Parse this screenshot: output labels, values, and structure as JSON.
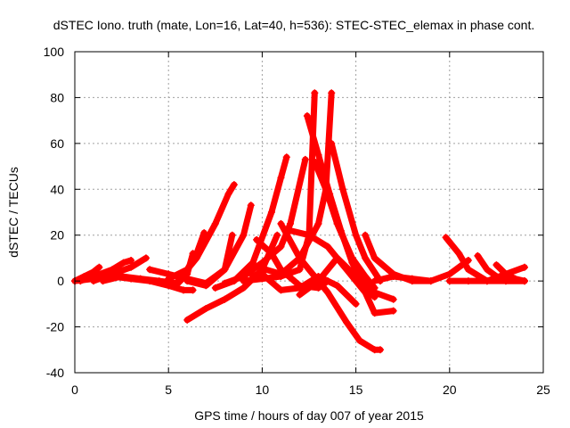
{
  "chart_data": {
    "type": "scatter",
    "title": "dSTEC Iono. truth (mate, Lon=16, Lat=40, h=536): STEC-STEC_elemax in phase cont.",
    "xlabel": "GPS time / hours of day 007 of year 2015",
    "ylabel": "dSTEC  / TECUs",
    "xlim": [
      0,
      25
    ],
    "ylim": [
      -40,
      100
    ],
    "xticks": [
      0,
      5,
      10,
      15,
      20,
      25
    ],
    "yticks": [
      -40,
      -20,
      0,
      20,
      40,
      60,
      80,
      100
    ],
    "grid": true,
    "marker": "+",
    "color": "#ff0000",
    "series": [
      {
        "x": [
          0,
          0.5,
          1.0,
          1.3
        ],
        "y": [
          0,
          2,
          4,
          6
        ]
      },
      {
        "x": [
          0,
          1.0,
          2.0,
          3.0,
          4.0,
          5.0,
          5.8,
          6.3
        ],
        "y": [
          0,
          1,
          2,
          1,
          0,
          -2,
          -4,
          -4
        ]
      },
      {
        "x": [
          0.3,
          1.0,
          2.0,
          2.6,
          3.0
        ],
        "y": [
          0,
          2,
          5,
          8,
          9
        ]
      },
      {
        "x": [
          1.0,
          2.0,
          3.0,
          3.8
        ],
        "y": [
          0,
          3,
          6,
          10
        ]
      },
      {
        "x": [
          1.5,
          2.5,
          3.5,
          4.5,
          5.5,
          6.0,
          6.3
        ],
        "y": [
          0,
          2,
          1,
          0,
          -1,
          3,
          12
        ]
      },
      {
        "x": [
          4.0,
          5.0,
          6.0,
          7.0,
          8.0,
          8.4
        ],
        "y": [
          5,
          3,
          1,
          -1,
          5,
          20
        ]
      },
      {
        "x": [
          5.0,
          6.0,
          6.5,
          6.9
        ],
        "y": [
          1,
          5,
          12,
          21
        ]
      },
      {
        "x": [
          6.0,
          7.0,
          8.0,
          9.0,
          9.4
        ],
        "y": [
          0,
          -2,
          5,
          20,
          33
        ]
      },
      {
        "x": [
          5.5,
          6.5,
          7.5,
          8.2,
          8.5
        ],
        "y": [
          0,
          10,
          25,
          38,
          42
        ]
      },
      {
        "x": [
          6.0,
          7.0,
          8.0,
          9.0,
          10.0,
          10.8
        ],
        "y": [
          -17,
          -12,
          -8,
          -3,
          5,
          20
        ]
      },
      {
        "x": [
          7.5,
          8.5,
          9.5,
          10.5,
          11.0,
          11.3
        ],
        "y": [
          -3,
          0,
          8,
          30,
          45,
          54
        ]
      },
      {
        "x": [
          8.0,
          9.0,
          10.0,
          11.0,
          11.5,
          12.3
        ],
        "y": [
          -1,
          2,
          8,
          15,
          25,
          53
        ]
      },
      {
        "x": [
          9.0,
          10.0,
          11.0,
          12.0,
          12.5,
          12.8
        ],
        "y": [
          0,
          1,
          2,
          5,
          20,
          82
        ]
      },
      {
        "x": [
          9.5,
          10.2,
          11.0,
          12.0,
          13.0,
          13.4,
          13.7
        ],
        "y": [
          2,
          5,
          3,
          10,
          25,
          40,
          82
        ]
      },
      {
        "x": [
          9.7,
          10.5,
          11.0,
          12.0,
          13.0,
          13.5
        ],
        "y": [
          18,
          12,
          5,
          -2,
          -3,
          0
        ]
      },
      {
        "x": [
          10.0,
          11.0,
          12.0,
          13.0,
          14.0,
          15.0
        ],
        "y": [
          3,
          -4,
          -3,
          2,
          -2,
          -10
        ]
      },
      {
        "x": [
          11.0,
          12.0,
          12.5,
          13.5,
          14.5,
          15.2,
          16.0,
          16.3
        ],
        "y": [
          25,
          10,
          5,
          -5,
          -18,
          -26,
          -30,
          -30
        ]
      },
      {
        "x": [
          11.5,
          12.5,
          13.5,
          14.5,
          15.5,
          16.0,
          17.0
        ],
        "y": [
          22,
          20,
          15,
          5,
          -5,
          -14,
          -13
        ]
      },
      {
        "x": [
          12.0,
          13.0,
          14.0,
          15.0,
          16.0,
          17.0
        ],
        "y": [
          -6,
          0,
          10,
          2,
          -5,
          -8
        ]
      },
      {
        "x": [
          12.4,
          13.0,
          13.6,
          14.2,
          14.8,
          15.5,
          16.0
        ],
        "y": [
          72,
          55,
          38,
          22,
          8,
          -3,
          -7
        ]
      },
      {
        "x": [
          12.8,
          13.4,
          14.0,
          14.8,
          15.5,
          16.0
        ],
        "y": [
          52,
          40,
          25,
          10,
          2,
          -3
        ]
      },
      {
        "x": [
          13.7,
          14.3,
          15.0,
          15.5,
          16.3
        ],
        "y": [
          60,
          40,
          20,
          10,
          0
        ]
      },
      {
        "x": [
          15.5,
          16.0,
          17.0,
          18.0,
          19.0
        ],
        "y": [
          20,
          10,
          3,
          0,
          0
        ]
      },
      {
        "x": [
          16.0,
          17.0,
          18.0,
          19.0,
          20.0,
          21.0
        ],
        "y": [
          0,
          2,
          1,
          0,
          3,
          9
        ]
      },
      {
        "x": [
          19.8,
          20.5,
          21.0,
          22.0,
          23.0,
          24.0
        ],
        "y": [
          19,
          12,
          5,
          0,
          0,
          0
        ]
      },
      {
        "x": [
          20.0,
          21.0,
          22.0
        ],
        "y": [
          0,
          0,
          0
        ]
      },
      {
        "x": [
          21.5,
          22.0,
          22.5,
          23.0,
          24.0
        ],
        "y": [
          11,
          5,
          2,
          0,
          0
        ]
      },
      {
        "x": [
          22.5,
          23.0,
          23.5,
          24.0
        ],
        "y": [
          7,
          3,
          1,
          0
        ]
      },
      {
        "x": [
          22.0,
          23.0,
          24.0
        ],
        "y": [
          0,
          3,
          6
        ]
      }
    ]
  }
}
